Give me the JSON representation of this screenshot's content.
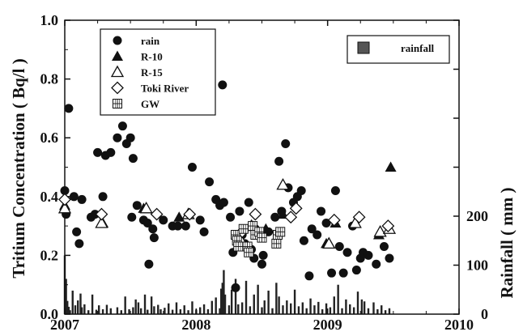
{
  "chart_data": {
    "type": "scatter",
    "xlabel": "",
    "ylabel": "Tritium Concentration ( Bq/l )",
    "y2label": "Rainfall ( mm )",
    "xlim": [
      2007,
      2010
    ],
    "ylim": [
      0,
      1.0
    ],
    "y2lim": [
      0,
      600
    ],
    "grid": false,
    "x_ticks": [
      {
        "label": "2007",
        "value": 2007
      },
      {
        "label": "2008",
        "value": 2008
      },
      {
        "label": "2009",
        "value": 2009
      },
      {
        "label": "2010",
        "value": 2010
      }
    ],
    "y_ticks": [
      {
        "label": "0.0",
        "value": 0.0
      },
      {
        "label": "0.2",
        "value": 0.2
      },
      {
        "label": "0.4",
        "value": 0.4
      },
      {
        "label": "0.6",
        "value": 0.6
      },
      {
        "label": "0.8",
        "value": 0.8
      },
      {
        "label": "1.0",
        "value": 1.0
      }
    ],
    "y2_ticks": [
      {
        "label": "0",
        "value": 0
      },
      {
        "label": "100",
        "value": 100
      },
      {
        "label": "200",
        "value": 200
      }
    ],
    "legend": [
      {
        "name": "rain",
        "marker": "filled-circle"
      },
      {
        "name": "R-10",
        "marker": "filled-triangle"
      },
      {
        "name": "R-15",
        "marker": "open-triangle"
      },
      {
        "name": "Toki River",
        "marker": "open-diamond"
      },
      {
        "name": "GW",
        "marker": "gridded-square"
      }
    ],
    "legend2": [
      {
        "name": "rainfall",
        "marker": "bar"
      }
    ],
    "series": [
      {
        "name": "rain",
        "marker": "filled-circle",
        "points": [
          [
            2007.0,
            0.42
          ],
          [
            2007.01,
            0.34
          ],
          [
            2007.03,
            0.7
          ],
          [
            2007.07,
            0.4
          ],
          [
            2007.09,
            0.28
          ],
          [
            2007.11,
            0.24
          ],
          [
            2007.13,
            0.39
          ],
          [
            2007.2,
            0.33
          ],
          [
            2007.23,
            0.34
          ],
          [
            2007.25,
            0.55
          ],
          [
            2007.29,
            0.4
          ],
          [
            2007.31,
            0.54
          ],
          [
            2007.35,
            0.55
          ],
          [
            2007.4,
            0.6
          ],
          [
            2007.44,
            0.64
          ],
          [
            2007.47,
            0.58
          ],
          [
            2007.5,
            0.6
          ],
          [
            2007.52,
            0.53
          ],
          [
            2007.51,
            0.33
          ],
          [
            2007.55,
            0.37
          ],
          [
            2007.6,
            0.32
          ],
          [
            2007.63,
            0.31
          ],
          [
            2007.64,
            0.17
          ],
          [
            2007.67,
            0.29
          ],
          [
            2007.68,
            0.26
          ],
          [
            2007.7,
            0.34
          ],
          [
            2007.75,
            0.32
          ],
          [
            2007.82,
            0.3
          ],
          [
            2007.86,
            0.3
          ],
          [
            2007.92,
            0.3
          ],
          [
            2007.97,
            0.5
          ],
          [
            2008.03,
            0.32
          ],
          [
            2008.06,
            0.28
          ],
          [
            2008.1,
            0.45
          ],
          [
            2008.15,
            0.39
          ],
          [
            2008.18,
            0.37
          ],
          [
            2008.2,
            0.78
          ],
          [
            2008.21,
            0.38
          ],
          [
            2008.26,
            0.33
          ],
          [
            2008.28,
            0.21
          ],
          [
            2008.3,
            0.09
          ],
          [
            2008.33,
            0.35
          ],
          [
            2008.35,
            0.27
          ],
          [
            2008.37,
            0.24
          ],
          [
            2008.4,
            0.38
          ],
          [
            2008.42,
            0.22
          ],
          [
            2008.44,
            0.19
          ],
          [
            2008.45,
            0.29
          ],
          [
            2008.5,
            0.17
          ],
          [
            2008.51,
            0.2
          ],
          [
            2008.55,
            0.28
          ],
          [
            2008.6,
            0.33
          ],
          [
            2008.63,
            0.52
          ],
          [
            2008.65,
            0.35
          ],
          [
            2008.68,
            0.58
          ],
          [
            2008.7,
            0.43
          ],
          [
            2008.74,
            0.38
          ],
          [
            2008.77,
            0.4
          ],
          [
            2008.8,
            0.42
          ],
          [
            2008.82,
            0.25
          ],
          [
            2008.86,
            0.13
          ],
          [
            2008.88,
            0.29
          ],
          [
            2008.92,
            0.27
          ],
          [
            2008.95,
            0.35
          ],
          [
            2008.99,
            0.31
          ],
          [
            2009.03,
            0.14
          ],
          [
            2009.06,
            0.42
          ],
          [
            2009.09,
            0.23
          ],
          [
            2009.12,
            0.14
          ],
          [
            2009.15,
            0.21
          ],
          [
            2009.19,
            0.3
          ],
          [
            2009.22,
            0.15
          ],
          [
            2009.25,
            0.19
          ],
          [
            2009.27,
            0.21
          ],
          [
            2009.31,
            0.2
          ],
          [
            2009.37,
            0.17
          ],
          [
            2009.43,
            0.23
          ],
          [
            2009.47,
            0.19
          ]
        ]
      },
      {
        "name": "R-10",
        "marker": "filled-triangle",
        "points": [
          [
            2007.0,
            0.37
          ],
          [
            2007.29,
            0.31
          ],
          [
            2007.6,
            0.36
          ],
          [
            2007.87,
            0.33
          ],
          [
            2008.34,
            0.24
          ],
          [
            2008.43,
            0.3
          ],
          [
            2008.53,
            0.29
          ],
          [
            2008.66,
            0.34
          ],
          [
            2008.99,
            0.24
          ],
          [
            2009.06,
            0.31
          ],
          [
            2009.39,
            0.27
          ],
          [
            2009.48,
            0.5
          ]
        ]
      },
      {
        "name": "R-15",
        "marker": "open-triangle",
        "points": [
          [
            2007.0,
            0.36
          ],
          [
            2007.28,
            0.31
          ],
          [
            2007.62,
            0.36
          ],
          [
            2007.94,
            0.34
          ],
          [
            2008.33,
            0.26
          ],
          [
            2008.42,
            0.3
          ],
          [
            2008.66,
            0.44
          ],
          [
            2009.01,
            0.24
          ],
          [
            2009.21,
            0.31
          ],
          [
            2009.4,
            0.28
          ],
          [
            2009.47,
            0.29
          ]
        ]
      },
      {
        "name": "Toki River",
        "marker": "open-diamond",
        "points": [
          [
            2007.0,
            0.39
          ],
          [
            2007.28,
            0.34
          ],
          [
            2007.7,
            0.34
          ],
          [
            2007.95,
            0.34
          ],
          [
            2008.35,
            0.28
          ],
          [
            2008.45,
            0.34
          ],
          [
            2008.72,
            0.33
          ],
          [
            2008.76,
            0.36
          ],
          [
            2009.05,
            0.32
          ],
          [
            2009.24,
            0.33
          ],
          [
            2009.46,
            0.3
          ]
        ]
      },
      {
        "name": "GW",
        "marker": "gridded-square",
        "points": [
          [
            2008.3,
            0.27
          ],
          [
            2008.31,
            0.25
          ],
          [
            2008.32,
            0.23
          ],
          [
            2008.36,
            0.29
          ],
          [
            2008.39,
            0.23
          ],
          [
            2008.4,
            0.21
          ],
          [
            2008.43,
            0.3
          ],
          [
            2008.45,
            0.27
          ],
          [
            2008.48,
            0.28
          ],
          [
            2008.5,
            0.26
          ],
          [
            2008.61,
            0.24
          ],
          [
            2008.62,
            0.27
          ],
          [
            2008.64,
            0.28
          ]
        ]
      },
      {
        "name": "rainfall",
        "type": "bar",
        "axis": "right",
        "points": [
          [
            2007.0,
            120
          ],
          [
            2007.01,
            72
          ],
          [
            2007.02,
            27
          ],
          [
            2007.03,
            15
          ],
          [
            2007.04,
            8
          ],
          [
            2007.06,
            48
          ],
          [
            2007.08,
            18
          ],
          [
            2007.1,
            28
          ],
          [
            2007.12,
            42
          ],
          [
            2007.13,
            14
          ],
          [
            2007.15,
            20
          ],
          [
            2007.18,
            8
          ],
          [
            2007.21,
            40
          ],
          [
            2007.24,
            9
          ],
          [
            2007.26,
            18
          ],
          [
            2007.29,
            10
          ],
          [
            2007.32,
            19
          ],
          [
            2007.35,
            12
          ],
          [
            2007.4,
            14
          ],
          [
            2007.43,
            8
          ],
          [
            2007.46,
            36
          ],
          [
            2007.49,
            10
          ],
          [
            2007.52,
            14
          ],
          [
            2007.54,
            30
          ],
          [
            2007.56,
            24
          ],
          [
            2007.58,
            12
          ],
          [
            2007.61,
            40
          ],
          [
            2007.63,
            9
          ],
          [
            2007.66,
            36
          ],
          [
            2007.68,
            16
          ],
          [
            2007.71,
            19
          ],
          [
            2007.73,
            10
          ],
          [
            2007.76,
            13
          ],
          [
            2007.79,
            22
          ],
          [
            2007.82,
            9
          ],
          [
            2007.85,
            24
          ],
          [
            2007.88,
            10
          ],
          [
            2007.91,
            18
          ],
          [
            2007.94,
            8
          ],
          [
            2007.97,
            26
          ],
          [
            2008.0,
            9
          ],
          [
            2008.03,
            14
          ],
          [
            2008.06,
            20
          ],
          [
            2008.09,
            10
          ],
          [
            2008.12,
            27
          ],
          [
            2008.15,
            34
          ],
          [
            2008.18,
            12
          ],
          [
            2008.19,
            52
          ],
          [
            2008.2,
            64
          ],
          [
            2008.21,
            90
          ],
          [
            2008.22,
            40
          ],
          [
            2008.25,
            18
          ],
          [
            2008.27,
            50
          ],
          [
            2008.3,
            72
          ],
          [
            2008.32,
            20
          ],
          [
            2008.35,
            24
          ],
          [
            2008.38,
            68
          ],
          [
            2008.41,
            16
          ],
          [
            2008.44,
            40
          ],
          [
            2008.47,
            60
          ],
          [
            2008.5,
            14
          ],
          [
            2008.52,
            28
          ],
          [
            2008.55,
            48
          ],
          [
            2008.58,
            12
          ],
          [
            2008.61,
            64
          ],
          [
            2008.63,
            36
          ],
          [
            2008.66,
            18
          ],
          [
            2008.69,
            28
          ],
          [
            2008.72,
            22
          ],
          [
            2008.75,
            50
          ],
          [
            2008.78,
            16
          ],
          [
            2008.81,
            24
          ],
          [
            2008.84,
            12
          ],
          [
            2008.87,
            32
          ],
          [
            2008.9,
            18
          ],
          [
            2008.93,
            25
          ],
          [
            2008.96,
            10
          ],
          [
            2008.99,
            22
          ],
          [
            2009.02,
            14
          ],
          [
            2009.05,
            36
          ],
          [
            2009.08,
            60
          ],
          [
            2009.11,
            12
          ],
          [
            2009.14,
            30
          ],
          [
            2009.17,
            20
          ],
          [
            2009.2,
            14
          ],
          [
            2009.23,
            46
          ],
          [
            2009.26,
            30
          ],
          [
            2009.28,
            26
          ],
          [
            2009.31,
            12
          ],
          [
            2009.35,
            24
          ],
          [
            2009.38,
            10
          ],
          [
            2009.41,
            18
          ],
          [
            2009.44,
            8
          ],
          [
            2009.47,
            12
          ]
        ]
      }
    ]
  }
}
